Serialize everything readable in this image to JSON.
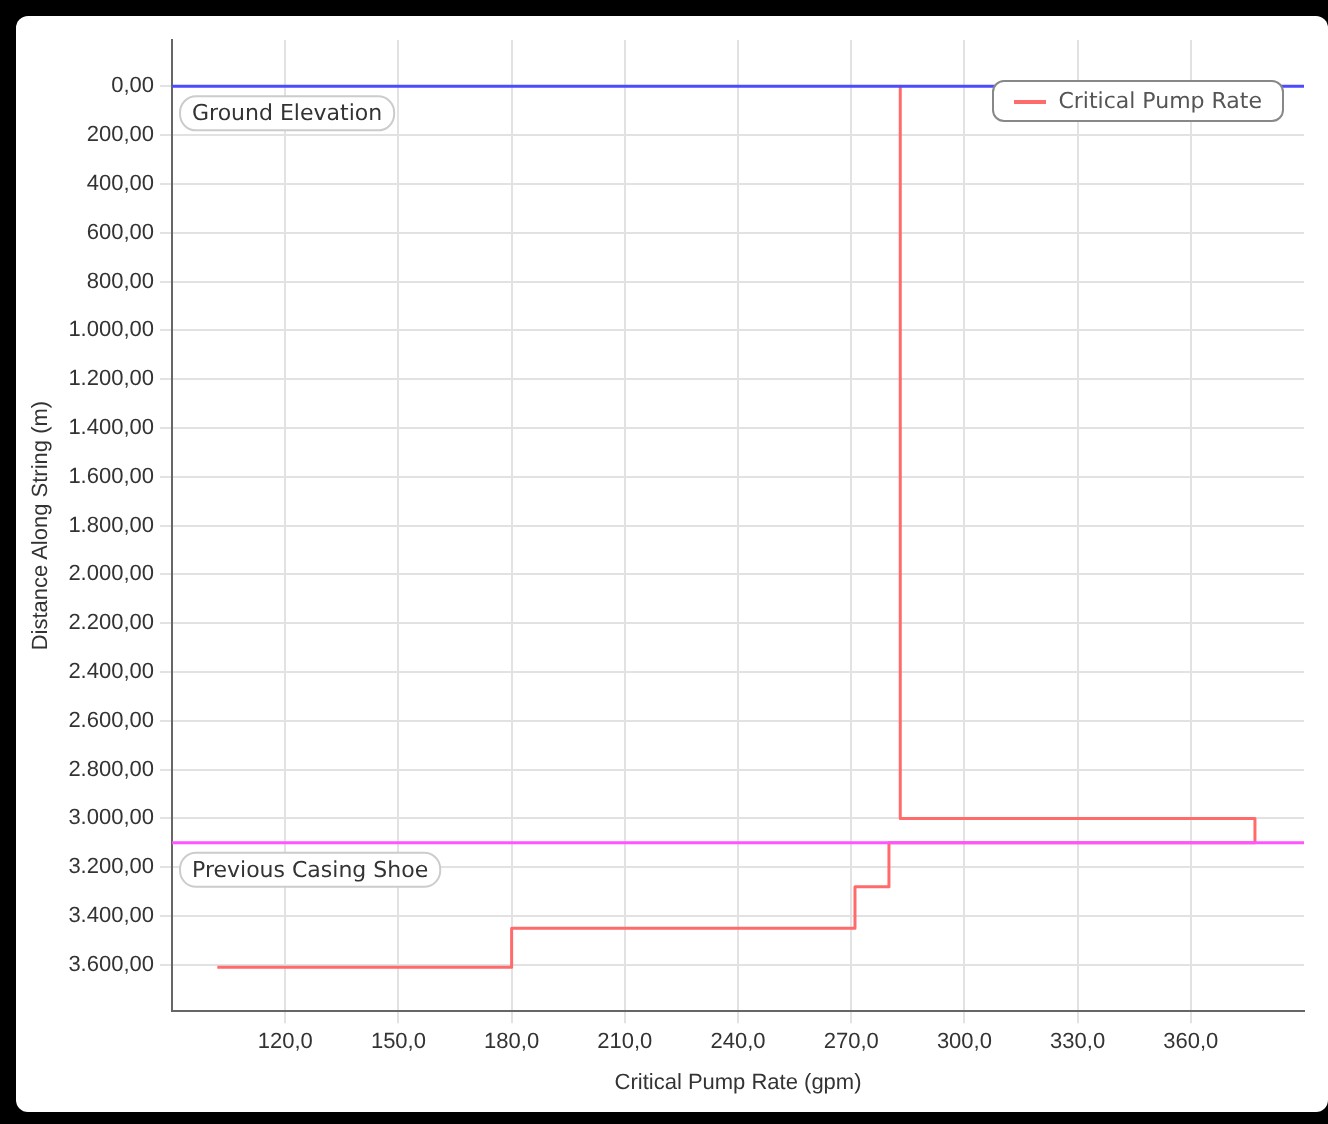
{
  "chart_data": {
    "type": "line",
    "xlabel": "Critical Pump Rate (gpm)",
    "ylabel": "Distance Along String (m)",
    "series": [
      {
        "name": "Critical Pump Rate",
        "color": "#ff6b6b",
        "x": [
          283,
          283,
          377,
          377,
          280,
          280,
          271,
          271,
          180,
          180,
          102
        ],
        "values": [
          0,
          3000,
          3000,
          3100,
          3100,
          3280,
          3280,
          3450,
          3450,
          3610,
          3610
        ]
      }
    ],
    "xlim": [
      90,
      390
    ],
    "xticks": [
      {
        "value": 120,
        "label": "120,0"
      },
      {
        "value": 150,
        "label": "150,0"
      },
      {
        "value": 180,
        "label": "180,0"
      },
      {
        "value": 210,
        "label": "210,0"
      },
      {
        "value": 240,
        "label": "240,0"
      },
      {
        "value": 270,
        "label": "270,0"
      },
      {
        "value": 300,
        "label": "300,0"
      },
      {
        "value": 330,
        "label": "330,0"
      },
      {
        "value": 360,
        "label": "360,0"
      }
    ],
    "ylim": [
      3790,
      -190
    ],
    "yticks": [
      {
        "value": 0,
        "label": "0,00"
      },
      {
        "value": 200,
        "label": "200,00"
      },
      {
        "value": 400,
        "label": "400,00"
      },
      {
        "value": 600,
        "label": "600,00"
      },
      {
        "value": 800,
        "label": "800,00"
      },
      {
        "value": 1000,
        "label": "1.000,00"
      },
      {
        "value": 1200,
        "label": "1.200,00"
      },
      {
        "value": 1400,
        "label": "1.400,00"
      },
      {
        "value": 1600,
        "label": "1.600,00"
      },
      {
        "value": 1800,
        "label": "1.800,00"
      },
      {
        "value": 2000,
        "label": "2.000,00"
      },
      {
        "value": 2200,
        "label": "2.200,00"
      },
      {
        "value": 2400,
        "label": "2.400,00"
      },
      {
        "value": 2600,
        "label": "2.600,00"
      },
      {
        "value": 2800,
        "label": "2.800,00"
      },
      {
        "value": 3000,
        "label": "3.000,00"
      },
      {
        "value": 3200,
        "label": "3.200,00"
      },
      {
        "value": 3400,
        "label": "3.400,00"
      },
      {
        "value": 3600,
        "label": "3.600,00"
      }
    ],
    "ref_lines": [
      {
        "axis": "y",
        "value": 0,
        "label": "Ground Elevation",
        "color": "#4b4bff"
      },
      {
        "axis": "y",
        "value": 3100,
        "label": "Previous Casing Shoe",
        "color": "#ff55ff"
      }
    ],
    "grid": true,
    "legend": "top right",
    "marker": "none",
    "line_style": "solid"
  }
}
